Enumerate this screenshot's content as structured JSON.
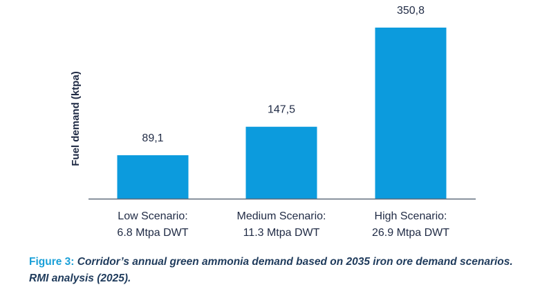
{
  "chart_data": {
    "type": "bar",
    "categories": [
      [
        "Low Scenario:",
        "6.8 Mtpa DWT"
      ],
      [
        "Medium Scenario:",
        "11.3 Mtpa DWT"
      ],
      [
        "High Scenario:",
        "26.9 Mtpa DWT"
      ]
    ],
    "values": [
      89.1,
      147.5,
      350.8
    ],
    "value_labels": [
      "89,1",
      "147,5",
      "350,8"
    ],
    "ylabel": "Fuel demand (ktpa)",
    "xlabel": "",
    "title": "",
    "ylim": [
      0,
      350.8
    ],
    "grid": false,
    "bar_color": "#0c9bdd",
    "axis_color": "#5f6b7a"
  },
  "caption": {
    "figure_label": "Figure 3:",
    "text": " Corridor’s annual green ammonia demand based on 2035 iron ore demand scenarios. RMI analysis (2025)."
  }
}
